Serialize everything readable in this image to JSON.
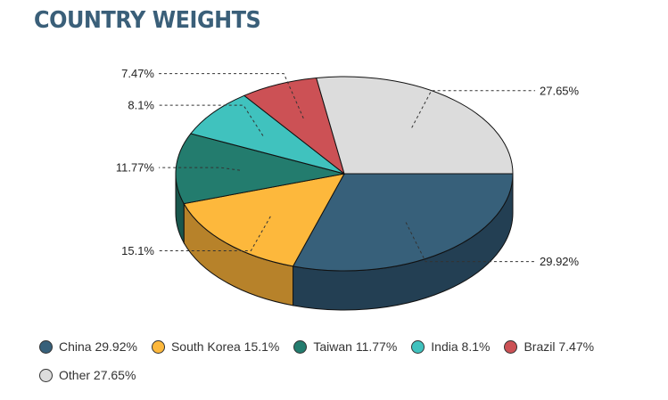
{
  "title": "COUNTRY WEIGHTS",
  "chart_data": {
    "type": "pie",
    "title": "COUNTRY WEIGHTS",
    "slices": [
      {
        "name": "China",
        "value": 29.92,
        "value_label": "29.92%",
        "legend_label": "China 29.92%",
        "color": "#37607a",
        "side_color": "#233f53"
      },
      {
        "name": "South Korea",
        "value": 15.1,
        "value_label": "15.1%",
        "legend_label": "South Korea 15.1%",
        "color": "#fdb83c",
        "side_color": "#b7822a"
      },
      {
        "name": "Taiwan",
        "value": 11.77,
        "value_label": "11.77%",
        "legend_label": "Taiwan 11.77%",
        "color": "#237c6e",
        "side_color": "#19574d"
      },
      {
        "name": "India",
        "value": 8.1,
        "value_label": "8.1%",
        "legend_label": "India 8.1%",
        "color": "#40c2be",
        "side_color": "#2d8885"
      },
      {
        "name": "Brazil",
        "value": 7.47,
        "value_label": "7.47%",
        "legend_label": "Brazil 7.47%",
        "color": "#cc5155",
        "side_color": "#8f393b"
      },
      {
        "name": "Other",
        "value": 27.65,
        "value_label": "27.65%",
        "legend_label": "Other 27.65%",
        "color": "#dcdcdc",
        "side_color": "#a8a8a8"
      }
    ],
    "legend_placement": "bottom",
    "three_d": true
  }
}
